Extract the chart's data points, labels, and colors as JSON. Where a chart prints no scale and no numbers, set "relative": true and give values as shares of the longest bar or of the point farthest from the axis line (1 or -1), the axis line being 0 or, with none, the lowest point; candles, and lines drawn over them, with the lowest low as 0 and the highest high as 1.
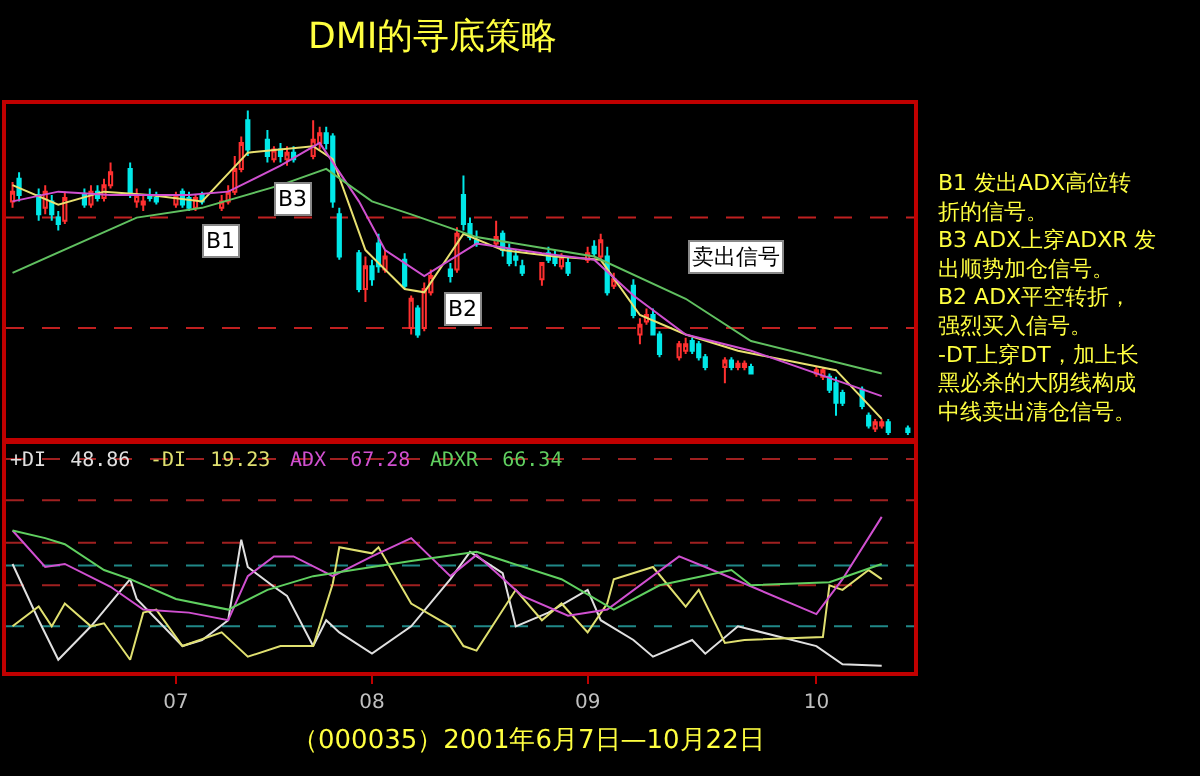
{
  "chart_data": [
    {
      "type": "candlestick",
      "title": "DMI的寻底策略",
      "relative": true,
      "tick_labels": false,
      "xlim": [
        "2001-06-06",
        "2001-10-23"
      ],
      "x": [
        "2001-06-07",
        "2001-06-08",
        "2001-06-11",
        "2001-06-12",
        "2001-06-13",
        "2001-06-14",
        "2001-06-15",
        "2001-06-18",
        "2001-06-19",
        "2001-06-20",
        "2001-06-21",
        "2001-06-22",
        "2001-06-25",
        "2001-06-26",
        "2001-06-27",
        "2001-06-28",
        "2001-06-29",
        "2001-07-02",
        "2001-07-03",
        "2001-07-04",
        "2001-07-05",
        "2001-07-06",
        "2001-07-09",
        "2001-07-10",
        "2001-07-11",
        "2001-07-12",
        "2001-07-13",
        "2001-07-16",
        "2001-07-17",
        "2001-07-18",
        "2001-07-19",
        "2001-07-20",
        "2001-07-23",
        "2001-07-24",
        "2001-07-25",
        "2001-07-26",
        "2001-07-27",
        "2001-07-30",
        "2001-07-31",
        "2001-08-01",
        "2001-08-02",
        "2001-08-03",
        "2001-08-06",
        "2001-08-07",
        "2001-08-08",
        "2001-08-09",
        "2001-08-10",
        "2001-08-13",
        "2001-08-14",
        "2001-08-15",
        "2001-08-16",
        "2001-08-17",
        "2001-08-20",
        "2001-08-21",
        "2001-08-22",
        "2001-08-23",
        "2001-08-24",
        "2001-08-27",
        "2001-08-28",
        "2001-08-29",
        "2001-08-30",
        "2001-08-31",
        "2001-09-03",
        "2001-09-04",
        "2001-09-05",
        "2001-09-06",
        "2001-09-07",
        "2001-09-10",
        "2001-09-11",
        "2001-09-12",
        "2001-09-13",
        "2001-09-14",
        "2001-09-17",
        "2001-09-18",
        "2001-09-19",
        "2001-09-20",
        "2001-09-21",
        "2001-09-24",
        "2001-09-25",
        "2001-09-26",
        "2001-09-27",
        "2001-09-28",
        "2001-10-08",
        "2001-10-09",
        "2001-10-10",
        "2001-10-11",
        "2001-10-12",
        "2001-10-15",
        "2001-10-16",
        "2001-10-17",
        "2001-10-18",
        "2001-10-19",
        "2001-10-22"
      ],
      "ohlc": [
        [
          0.72,
          0.78,
          0.7,
          0.75
        ],
        [
          0.79,
          0.81,
          0.72,
          0.74
        ],
        [
          0.74,
          0.76,
          0.66,
          0.68
        ],
        [
          0.7,
          0.77,
          0.68,
          0.75
        ],
        [
          0.72,
          0.74,
          0.66,
          0.68
        ],
        [
          0.67,
          0.69,
          0.63,
          0.65
        ],
        [
          0.66,
          0.75,
          0.65,
          0.73
        ],
        [
          0.74,
          0.76,
          0.7,
          0.71
        ],
        [
          0.71,
          0.77,
          0.7,
          0.75
        ],
        [
          0.75,
          0.77,
          0.72,
          0.73
        ],
        [
          0.73,
          0.79,
          0.72,
          0.77
        ],
        [
          0.77,
          0.84,
          0.76,
          0.81
        ],
        [
          0.82,
          0.84,
          0.73,
          0.74
        ],
        [
          0.72,
          0.76,
          0.7,
          0.74
        ],
        [
          0.71,
          0.74,
          0.69,
          0.72
        ],
        [
          0.74,
          0.76,
          0.72,
          0.73
        ],
        [
          0.73,
          0.75,
          0.71,
          0.72
        ],
        [
          0.71,
          0.75,
          0.7,
          0.74
        ],
        [
          0.75,
          0.76,
          0.7,
          0.71
        ],
        [
          0.73,
          0.75,
          0.69,
          0.7
        ],
        [
          0.7,
          0.74,
          0.69,
          0.73
        ],
        [
          0.74,
          0.75,
          0.71,
          0.72
        ],
        [
          0.7,
          0.74,
          0.69,
          0.72
        ],
        [
          0.72,
          0.77,
          0.71,
          0.75
        ],
        [
          0.75,
          0.86,
          0.74,
          0.82
        ],
        [
          0.82,
          0.92,
          0.81,
          0.9
        ],
        [
          0.97,
          1.0,
          0.86,
          0.88
        ],
        [
          0.91,
          0.94,
          0.84,
          0.86
        ],
        [
          0.85,
          0.89,
          0.84,
          0.88
        ],
        [
          0.88,
          0.9,
          0.84,
          0.86
        ],
        [
          0.85,
          0.89,
          0.83,
          0.87
        ],
        [
          0.87,
          0.89,
          0.84,
          0.85
        ],
        [
          0.86,
          0.97,
          0.85,
          0.91
        ],
        [
          0.9,
          0.95,
          0.88,
          0.93
        ],
        [
          0.93,
          0.95,
          0.88,
          0.9
        ],
        [
          0.92,
          0.93,
          0.7,
          0.72
        ],
        [
          0.68,
          0.7,
          0.54,
          0.55
        ],
        [
          0.56,
          0.57,
          0.44,
          0.45
        ],
        [
          0.45,
          0.55,
          0.41,
          0.52
        ],
        [
          0.52,
          0.54,
          0.46,
          0.48
        ],
        [
          0.59,
          0.62,
          0.5,
          0.52
        ],
        [
          0.51,
          0.57,
          0.5,
          0.55
        ],
        [
          0.54,
          0.56,
          0.45,
          0.46
        ],
        [
          0.33,
          0.43,
          0.31,
          0.42
        ],
        [
          0.39,
          0.4,
          0.3,
          0.31
        ],
        [
          0.33,
          0.47,
          0.32,
          0.45
        ],
        [
          0.44,
          0.51,
          0.43,
          0.49
        ],
        [
          0.51,
          0.53,
          0.47,
          0.49
        ],
        [
          0.51,
          0.64,
          0.5,
          0.62
        ],
        [
          0.74,
          0.8,
          0.63,
          0.65
        ],
        [
          0.65,
          0.67,
          0.6,
          0.61
        ],
        [
          0.6,
          0.63,
          0.58,
          0.59
        ],
        [
          0.59,
          0.66,
          0.58,
          0.61
        ],
        [
          0.62,
          0.63,
          0.55,
          0.57
        ],
        [
          0.57,
          0.59,
          0.52,
          0.53
        ],
        [
          0.55,
          0.57,
          0.52,
          0.54
        ],
        [
          0.52,
          0.54,
          0.49,
          0.5
        ],
        [
          0.48,
          0.53,
          0.46,
          0.53
        ],
        [
          0.56,
          0.58,
          0.53,
          0.54
        ],
        [
          0.55,
          0.57,
          0.52,
          0.53
        ],
        [
          0.52,
          0.56,
          0.51,
          0.55
        ],
        [
          0.53,
          0.55,
          0.49,
          0.5
        ],
        [
          0.54,
          0.58,
          0.53,
          0.56
        ],
        [
          0.58,
          0.6,
          0.55,
          0.56
        ],
        [
          0.55,
          0.62,
          0.54,
          0.6
        ],
        [
          0.55,
          0.58,
          0.43,
          0.44
        ],
        [
          0.46,
          0.5,
          0.45,
          0.48
        ],
        [
          0.46,
          0.48,
          0.36,
          0.37
        ],
        [
          0.31,
          0.36,
          0.28,
          0.34
        ],
        [
          0.35,
          0.39,
          0.34,
          0.37
        ],
        [
          0.37,
          0.39,
          0.31,
          0.31
        ],
        [
          0.31,
          0.32,
          0.24,
          0.25
        ],
        [
          0.24,
          0.29,
          0.23,
          0.28
        ],
        [
          0.26,
          0.3,
          0.25,
          0.28
        ],
        [
          0.29,
          0.3,
          0.25,
          0.26
        ],
        [
          0.28,
          0.29,
          0.23,
          0.24
        ],
        [
          0.24,
          0.25,
          0.2,
          0.21
        ],
        [
          0.21,
          0.24,
          0.16,
          0.23
        ],
        [
          0.23,
          0.24,
          0.2,
          0.21
        ],
        [
          0.21,
          0.23,
          0.2,
          0.22
        ],
        [
          0.21,
          0.23,
          0.2,
          0.22
        ],
        [
          0.21,
          0.22,
          0.19,
          0.19
        ],
        [
          0.19,
          0.21,
          0.18,
          0.2
        ],
        [
          0.18,
          0.21,
          0.17,
          0.2
        ],
        [
          0.18,
          0.19,
          0.13,
          0.14
        ],
        [
          0.16,
          0.18,
          0.06,
          0.1
        ],
        [
          0.13,
          0.14,
          0.09,
          0.1
        ],
        [
          0.14,
          0.15,
          0.08,
          0.09
        ],
        [
          0.06,
          0.07,
          0.02,
          0.03
        ],
        [
          0.02,
          0.05,
          0.01,
          0.04
        ],
        [
          0.03,
          0.05,
          0.02,
          0.04
        ],
        [
          0.04,
          0.05,
          0.0,
          0.01
        ],
        [
          0.02,
          0.03,
          0.0,
          0.01
        ]
      ],
      "series": [
        {
          "type": "line",
          "color": "#e8e070",
          "x": [
            "2001-06-07",
            "2001-06-14",
            "2001-06-21",
            "2001-06-28",
            "2001-07-06",
            "2001-07-13",
            "2001-07-23",
            "2001-07-26",
            "2001-07-31",
            "2001-08-06",
            "2001-08-09",
            "2001-08-15",
            "2001-08-21",
            "2001-08-29",
            "2001-09-05",
            "2001-09-11",
            "2001-09-18",
            "2001-09-26",
            "2001-10-11",
            "2001-10-18"
          ],
          "values": [
            0.77,
            0.71,
            0.75,
            0.74,
            0.72,
            0.87,
            0.89,
            0.85,
            0.57,
            0.45,
            0.44,
            0.62,
            0.57,
            0.55,
            0.54,
            0.37,
            0.31,
            0.26,
            0.2,
            0.05
          ]
        },
        {
          "type": "line",
          "color": "#d050d0",
          "x": [
            "2001-06-07",
            "2001-06-14",
            "2001-06-22",
            "2001-07-04",
            "2001-07-10",
            "2001-07-18",
            "2001-07-24",
            "2001-07-30",
            "2001-08-03",
            "2001-08-09",
            "2001-08-17",
            "2001-08-27",
            "2001-09-04",
            "2001-09-10",
            "2001-09-18",
            "2001-09-28",
            "2001-10-18"
          ],
          "values": [
            0.72,
            0.75,
            0.74,
            0.74,
            0.75,
            0.83,
            0.9,
            0.72,
            0.57,
            0.49,
            0.59,
            0.56,
            0.54,
            0.43,
            0.31,
            0.26,
            0.12
          ]
        },
        {
          "type": "line",
          "color": "#60c060",
          "x": [
            "2001-06-07",
            "2001-06-26",
            "2001-07-06",
            "2001-07-18",
            "2001-07-25",
            "2001-08-01",
            "2001-08-07",
            "2001-08-17",
            "2001-09-04",
            "2001-09-18",
            "2001-09-28",
            "2001-10-18"
          ],
          "values": [
            0.5,
            0.67,
            0.7,
            0.77,
            0.82,
            0.72,
            0.68,
            0.61,
            0.55,
            0.42,
            0.29,
            0.19
          ]
        }
      ],
      "ref_lines": [
        {
          "axis": "y",
          "value": 0.67,
          "color": "#c02020",
          "line_style": "dashed"
        },
        {
          "axis": "y",
          "value": 0.33,
          "color": "#c02020",
          "line_style": "dashed"
        }
      ],
      "annotations": [
        {
          "text": "B1",
          "x": "2001-07-09",
          "y": 0.6
        },
        {
          "text": "B3",
          "x": "2001-07-20",
          "y": 0.73
        },
        {
          "text": "B2",
          "x": "2001-08-15",
          "y": 0.39
        },
        "卖出信号",
        "B1 发出ADX高位转折的信号。",
        "B3 ADX上穿ADXR 发出顺势加仓信号。",
        "B2 ADX平空转折，强烈买入信号。",
        "-DT上穿DT，加上长黑必杀的大阴线构成中线卖出清仓信号。"
      ]
    },
    {
      "type": "line",
      "relative": true,
      "tick_labels": "x",
      "xlim": [
        "2001-06-06",
        "2001-10-23"
      ],
      "xticks": [
        {
          "value": "2001-07-02",
          "label": "07"
        },
        {
          "value": "2001-08-01",
          "label": "08"
        },
        {
          "value": "2001-09-03",
          "label": "09"
        },
        {
          "value": "2001-10-08",
          "label": "10"
        }
      ],
      "series": [
        {
          "name": "+DI  48.86",
          "color": "#e0e0e0",
          "x": [
            "2001-06-07",
            "2001-06-11",
            "2001-06-14",
            "2001-06-19",
            "2001-06-25",
            "2001-06-26",
            "2001-07-03",
            "2001-07-06",
            "2001-07-10",
            "2001-07-12",
            "2001-07-13",
            "2001-07-17",
            "2001-07-19",
            "2001-07-23",
            "2001-07-25",
            "2001-07-27",
            "2001-08-01",
            "2001-08-07",
            "2001-08-13",
            "2001-08-16",
            "2001-08-21",
            "2001-08-23",
            "2001-08-28",
            "2001-09-03",
            "2001-09-05",
            "2001-09-10",
            "2001-09-13",
            "2001-09-19",
            "2001-09-21",
            "2001-09-26",
            "2001-10-08",
            "2001-10-12",
            "2001-10-18"
          ],
          "values": [
            0.69,
            0.32,
            0.06,
            0.28,
            0.59,
            0.46,
            0.15,
            0.19,
            0.32,
            0.85,
            0.67,
            0.54,
            0.48,
            0.15,
            0.32,
            0.24,
            0.1,
            0.28,
            0.59,
            0.77,
            0.63,
            0.28,
            0.37,
            0.52,
            0.32,
            0.19,
            0.08,
            0.19,
            0.1,
            0.28,
            0.15,
            0.03,
            0.02
          ]
        },
        {
          "name": "-DI  19.23",
          "color": "#e0e070",
          "x": [
            "2001-06-07",
            "2001-06-11",
            "2001-06-13",
            "2001-06-15",
            "2001-06-19",
            "2001-06-21",
            "2001-06-25",
            "2001-06-27",
            "2001-06-29",
            "2001-07-03",
            "2001-07-09",
            "2001-07-13",
            "2001-07-18",
            "2001-07-23",
            "2001-07-26",
            "2001-07-27",
            "2001-08-01",
            "2001-08-02",
            "2001-08-07",
            "2001-08-13",
            "2001-08-15",
            "2001-08-17",
            "2001-08-23",
            "2001-08-27",
            "2001-08-30",
            "2001-09-03",
            "2001-09-06",
            "2001-09-07",
            "2001-09-13",
            "2001-09-18",
            "2001-09-20",
            "2001-09-24",
            "2001-09-27",
            "2001-10-09",
            "2001-10-10",
            "2001-10-12",
            "2001-10-16",
            "2001-10-18"
          ],
          "values": [
            0.28,
            0.41,
            0.28,
            0.43,
            0.28,
            0.3,
            0.06,
            0.37,
            0.39,
            0.15,
            0.24,
            0.08,
            0.15,
            0.15,
            0.56,
            0.8,
            0.76,
            0.8,
            0.43,
            0.28,
            0.15,
            0.12,
            0.52,
            0.32,
            0.43,
            0.24,
            0.43,
            0.59,
            0.67,
            0.41,
            0.52,
            0.17,
            0.19,
            0.21,
            0.55,
            0.52,
            0.65,
            0.59
          ]
        },
        {
          "name": "ADX  67.28",
          "color": "#d050d0",
          "x": [
            "2001-06-07",
            "2001-06-12",
            "2001-06-15",
            "2001-06-22",
            "2001-06-27",
            "2001-07-04",
            "2001-07-10",
            "2001-07-13",
            "2001-07-17",
            "2001-07-20",
            "2001-07-26",
            "2001-08-01",
            "2001-08-07",
            "2001-08-13",
            "2001-08-17",
            "2001-08-24",
            "2001-08-31",
            "2001-09-06",
            "2001-09-17",
            "2001-09-21",
            "2001-10-08",
            "2001-10-12",
            "2001-10-18"
          ],
          "values": [
            0.91,
            0.67,
            0.69,
            0.54,
            0.39,
            0.37,
            0.32,
            0.61,
            0.74,
            0.74,
            0.61,
            0.74,
            0.86,
            0.61,
            0.75,
            0.48,
            0.35,
            0.39,
            0.74,
            0.67,
            0.36,
            0.59,
            1.0
          ]
        },
        {
          "name": "ADXR  66.34",
          "color": "#60d060",
          "x": [
            "2001-06-07",
            "2001-06-12",
            "2001-06-15",
            "2001-06-21",
            "2001-06-25",
            "2001-07-02",
            "2001-07-10",
            "2001-07-16",
            "2001-07-23",
            "2001-08-01",
            "2001-08-07",
            "2001-08-17",
            "2001-08-30",
            "2001-09-07",
            "2001-09-14",
            "2001-09-25",
            "2001-09-28",
            "2001-10-10",
            "2001-10-18"
          ],
          "values": [
            0.91,
            0.86,
            0.82,
            0.65,
            0.59,
            0.46,
            0.39,
            0.52,
            0.61,
            0.67,
            0.71,
            0.77,
            0.59,
            0.39,
            0.55,
            0.65,
            0.55,
            0.57,
            0.69
          ]
        }
      ],
      "ref_lines": [
        {
          "axis": "y",
          "value": 1.38,
          "color": "#a02020",
          "line_style": "dashed"
        },
        {
          "axis": "y",
          "value": 1.11,
          "color": "#a02020",
          "line_style": "dashed"
        },
        {
          "axis": "y",
          "value": 0.83,
          "color": "#a02020",
          "line_style": "dashed"
        },
        {
          "axis": "y",
          "value": 0.55,
          "color": "#a02020",
          "line_style": "dashed"
        },
        {
          "axis": "y",
          "value": 0.68,
          "color": "#208888",
          "line_style": "dashed"
        },
        {
          "axis": "y",
          "value": 0.28,
          "color": "#208888",
          "line_style": "dashed"
        }
      ],
      "annotations": [
        "（000035）2001年6月7日—10月22日"
      ]
    }
  ]
}
